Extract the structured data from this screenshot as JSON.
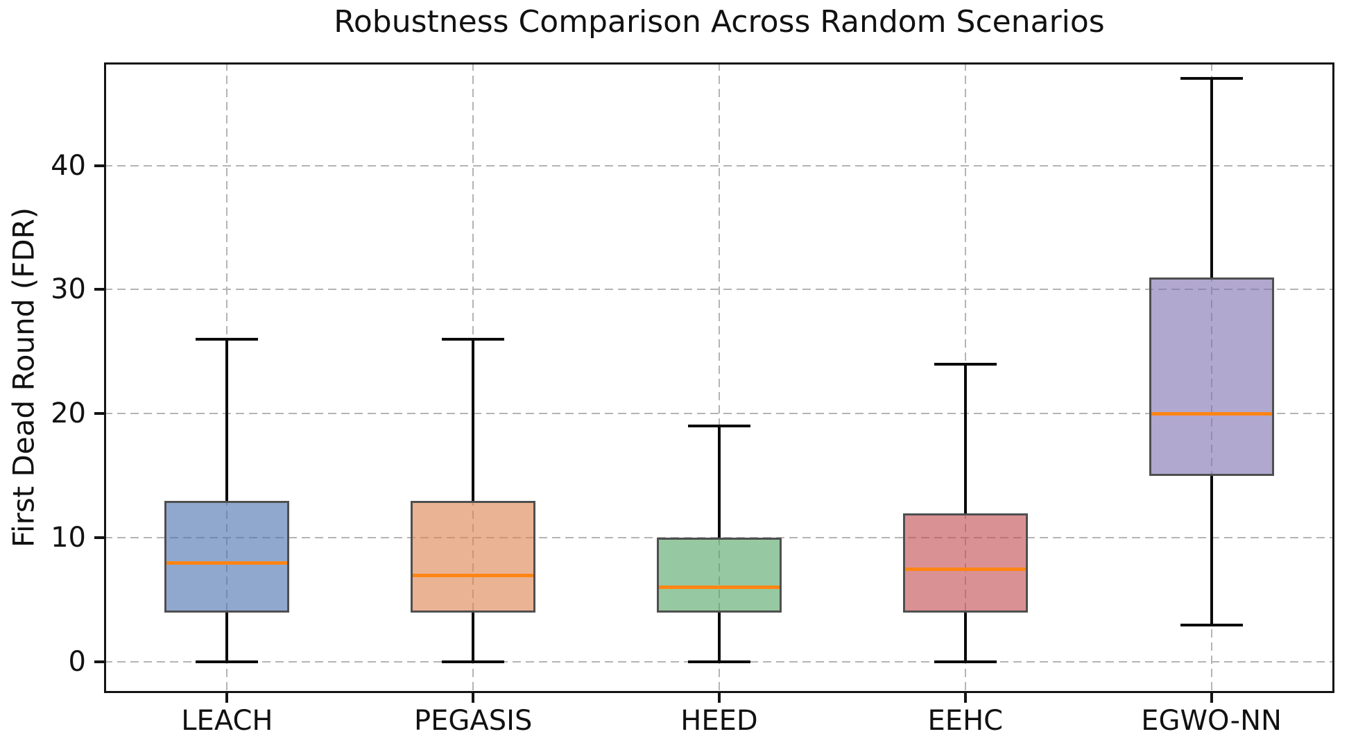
{
  "chart_data": {
    "type": "boxplot",
    "title": "Robustness Comparison Across Random Scenarios",
    "ylabel": "First Dead Round (FDR)",
    "xlabel": "",
    "categories": [
      "LEACH",
      "PEGASIS",
      "HEED",
      "EEHC",
      "EGWO-NN"
    ],
    "series": [
      {
        "name": "LEACH",
        "whislo": 0,
        "q1": 4,
        "med": 8,
        "q3": 13,
        "whishi": 26,
        "fill": "#4C72B0"
      },
      {
        "name": "PEGASIS",
        "whislo": 0,
        "q1": 4,
        "med": 7,
        "q3": 13,
        "whishi": 26,
        "fill": "#DD8452"
      },
      {
        "name": "HEED",
        "whislo": 0,
        "q1": 4,
        "med": 6,
        "q3": 10,
        "whishi": 19,
        "fill": "#55A868"
      },
      {
        "name": "EEHC",
        "whislo": 0,
        "q1": 4,
        "med": 7.5,
        "q3": 12,
        "whishi": 24,
        "fill": "#C44E52"
      },
      {
        "name": "EGWO-NN",
        "whislo": 3,
        "q1": 15,
        "med": 20,
        "q3": 31,
        "whishi": 47,
        "fill": "#8172B3"
      }
    ],
    "yticks": [
      0,
      10,
      20,
      30,
      40
    ],
    "ylim": [
      -2.5,
      48.3
    ],
    "grid": true,
    "grid_style": "dashed",
    "legend": "none",
    "colors": {
      "fill_alpha": 0.62,
      "box_edge": "#4f4f4f",
      "median": "#ff8514",
      "whisker": "#0a0a0a",
      "grid": "#b4b4b4",
      "spine": "#141414",
      "text": "#111111"
    }
  }
}
